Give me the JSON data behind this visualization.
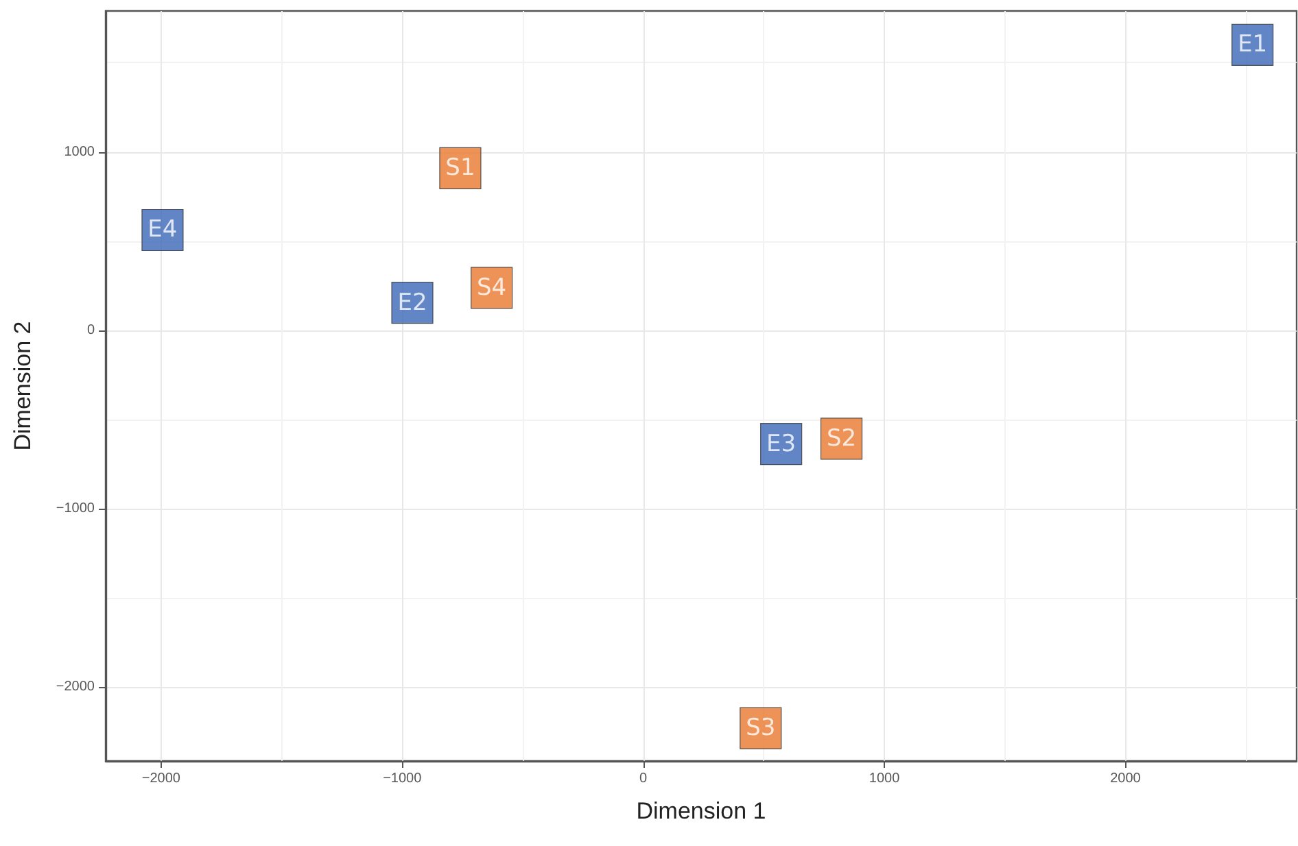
{
  "chart_data": {
    "type": "scatter",
    "xlabel": "Dimension 1",
    "ylabel": "Dimension 2",
    "xlim": [
      -2230,
      2710
    ],
    "ylim": [
      -2415,
      1790
    ],
    "xticks": [
      -2000,
      -1000,
      0,
      1000,
      2000
    ],
    "yticks": [
      -2000,
      -1000,
      0,
      1000
    ],
    "grid": true,
    "marker": "square",
    "series": [
      {
        "color": "#3a66b7",
        "x": [
          2527,
          -1994,
          -958,
          572
        ],
        "values": [
          1600,
          562,
          154,
          -638
        ]
      },
      {
        "color": "#e8782d",
        "x": [
          -759,
          -629,
          822,
          487
        ],
        "values": [
          908,
          238,
          -608,
          -2231
        ]
      }
    ],
    "annotations": [
      {
        "text": "E1",
        "x": 2527,
        "y": 1600
      },
      {
        "text": "E4",
        "x": -1994,
        "y": 562
      },
      {
        "text": "E2",
        "x": -958,
        "y": 154
      },
      {
        "text": "E3",
        "x": 572,
        "y": -638
      },
      {
        "text": "S1",
        "x": -759,
        "y": 908
      },
      {
        "text": "S4",
        "x": -629,
        "y": 238
      },
      {
        "text": "S2",
        "x": 822,
        "y": -608
      },
      {
        "text": "S3",
        "x": 487,
        "y": -2231
      }
    ]
  }
}
